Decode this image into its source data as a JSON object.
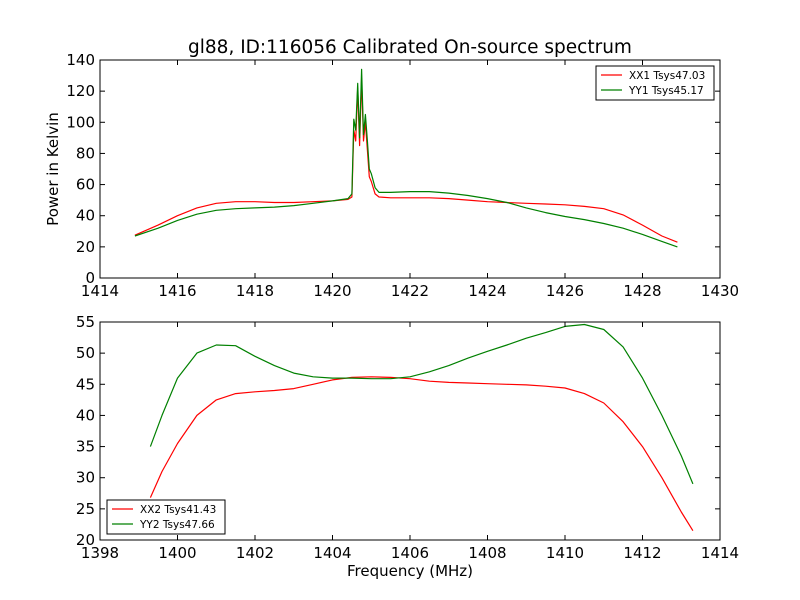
{
  "figure_title": "gl88, ID:116056 Calibrated On-source spectrum",
  "colors": {
    "xx": "#ff0000",
    "yy": "#008000"
  },
  "chart_data": [
    {
      "type": "line",
      "title": "gl88, ID:116056 Calibrated On-source spectrum",
      "xlabel": "",
      "ylabel": "Power in Kelvin",
      "xlim": [
        1414,
        1430
      ],
      "ylim": [
        0,
        140
      ],
      "xticks": [
        1414,
        1416,
        1418,
        1420,
        1422,
        1424,
        1426,
        1428,
        1430
      ],
      "yticks": [
        0,
        20,
        40,
        60,
        80,
        100,
        120,
        140
      ],
      "grid": false,
      "legend_position": "top-right",
      "series": [
        {
          "name": "XX1 Tsys47.03",
          "color": "#ff0000",
          "x": [
            1414.9,
            1415.5,
            1416.0,
            1416.5,
            1417.0,
            1417.5,
            1418.0,
            1418.5,
            1419.0,
            1419.5,
            1420.0,
            1420.4,
            1420.5,
            1420.55,
            1420.6,
            1420.65,
            1420.7,
            1420.75,
            1420.8,
            1420.85,
            1420.9,
            1420.95,
            1421.0,
            1421.1,
            1421.2,
            1421.5,
            1422.0,
            1422.5,
            1423.0,
            1423.5,
            1424.0,
            1424.5,
            1425.0,
            1425.5,
            1426.0,
            1426.5,
            1427.0,
            1427.5,
            1428.0,
            1428.5,
            1428.9
          ],
          "y": [
            27.5,
            34,
            40,
            45,
            48,
            49,
            49,
            48.5,
            48.5,
            49,
            49.5,
            50.5,
            52,
            95,
            88,
            122,
            85,
            128,
            88,
            100,
            82,
            65,
            62,
            54,
            52,
            51.5,
            51.5,
            51.5,
            51,
            50,
            49,
            48.5,
            48,
            47.5,
            47,
            46,
            44.5,
            40.5,
            34,
            27,
            23
          ]
        },
        {
          "name": "YY1 Tsys45.17",
          "color": "#008000",
          "x": [
            1414.9,
            1415.5,
            1416.0,
            1416.5,
            1417.0,
            1417.5,
            1418.0,
            1418.5,
            1419.0,
            1419.5,
            1420.0,
            1420.4,
            1420.5,
            1420.55,
            1420.6,
            1420.65,
            1420.7,
            1420.75,
            1420.8,
            1420.85,
            1420.9,
            1420.95,
            1421.0,
            1421.1,
            1421.2,
            1421.5,
            1422.0,
            1422.5,
            1423.0,
            1423.5,
            1424.0,
            1424.5,
            1425.0,
            1425.5,
            1426.0,
            1426.5,
            1427.0,
            1427.5,
            1428.0,
            1428.5,
            1428.9
          ],
          "y": [
            27,
            32,
            37,
            41,
            43.5,
            44.5,
            45,
            45.5,
            46.5,
            48,
            49.5,
            51,
            54,
            102,
            95,
            125,
            90,
            134,
            92,
            105,
            88,
            70,
            67,
            58,
            55,
            55,
            55.5,
            55.5,
            54.5,
            53,
            51,
            48.5,
            45,
            42,
            39.5,
            37.5,
            35,
            32,
            28,
            23.5,
            20
          ]
        }
      ]
    },
    {
      "type": "line",
      "title": "",
      "xlabel": "Frequency (MHz)",
      "ylabel": "",
      "xlim": [
        1398,
        1414
      ],
      "ylim": [
        20,
        55
      ],
      "xticks": [
        1398,
        1400,
        1402,
        1404,
        1406,
        1408,
        1410,
        1412,
        1414
      ],
      "yticks": [
        20,
        25,
        30,
        35,
        40,
        45,
        50,
        55
      ],
      "grid": false,
      "legend_position": "bottom-left",
      "series": [
        {
          "name": "XX2 Tsys41.43",
          "color": "#ff0000",
          "x": [
            1399.3,
            1399.6,
            1400.0,
            1400.5,
            1401.0,
            1401.5,
            1402.0,
            1402.5,
            1403.0,
            1403.5,
            1404.0,
            1404.5,
            1405.0,
            1405.5,
            1406.0,
            1406.5,
            1407.0,
            1407.5,
            1408.0,
            1408.5,
            1409.0,
            1409.5,
            1410.0,
            1410.5,
            1411.0,
            1411.5,
            1412.0,
            1412.5,
            1413.0,
            1413.3
          ],
          "y": [
            26.8,
            31,
            35.5,
            40,
            42.5,
            43.5,
            43.8,
            44,
            44.3,
            45,
            45.7,
            46.1,
            46.2,
            46.1,
            45.9,
            45.5,
            45.3,
            45.2,
            45.1,
            45,
            44.9,
            44.7,
            44.4,
            43.5,
            42,
            39,
            35,
            30,
            24.5,
            21.5
          ]
        },
        {
          "name": "YY2 Tsys47.66",
          "color": "#008000",
          "x": [
            1399.3,
            1399.6,
            1400.0,
            1400.5,
            1401.0,
            1401.5,
            1402.0,
            1402.5,
            1403.0,
            1403.5,
            1404.0,
            1404.5,
            1405.0,
            1405.5,
            1406.0,
            1406.5,
            1407.0,
            1407.5,
            1408.0,
            1408.5,
            1409.0,
            1409.5,
            1410.0,
            1410.5,
            1411.0,
            1411.5,
            1412.0,
            1412.5,
            1413.0,
            1413.3
          ],
          "y": [
            35,
            40,
            46,
            50,
            51.3,
            51.2,
            49.5,
            48,
            46.8,
            46.2,
            46,
            46,
            45.9,
            45.9,
            46.2,
            47,
            48,
            49.2,
            50.3,
            51.3,
            52.4,
            53.3,
            54.3,
            54.6,
            53.8,
            51,
            46,
            40,
            33.5,
            29
          ]
        }
      ]
    }
  ]
}
